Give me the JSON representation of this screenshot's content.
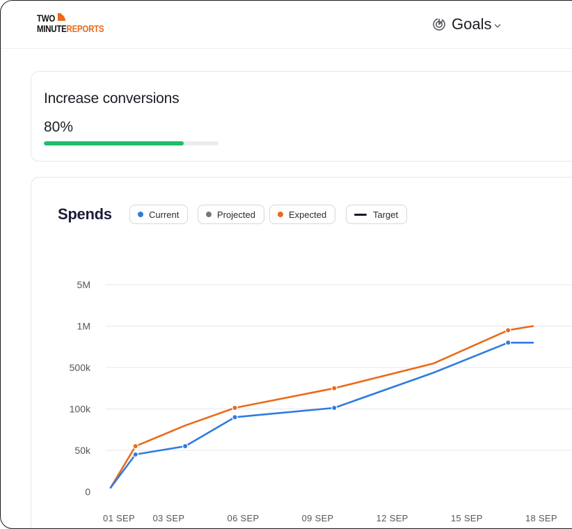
{
  "header": {
    "logo": {
      "line1": "TWO",
      "line2_a": "MINUTE",
      "line2_b": "REPORTS"
    },
    "nav_label": "Goals",
    "nav_icon": "goal-target-icon"
  },
  "goal": {
    "title": "Increase conversions",
    "percent_label": "80%",
    "progress": 0.8,
    "progress_color": "#1fbd6c"
  },
  "legend": {
    "current": {
      "label": "Current",
      "color": "#2f7be0"
    },
    "projected": {
      "label": "Projected",
      "color": "#777777"
    },
    "expected": {
      "label": "Expected",
      "color": "#ea6a1b"
    },
    "target": {
      "label": "Target",
      "color": "#17172a"
    }
  },
  "chart_data": {
    "type": "line",
    "title": "Spends",
    "y_ticks": [
      "0",
      "50k",
      "100k",
      "500k",
      "1M",
      "5M"
    ],
    "x_ticks": [
      "01 SEP",
      "03 SEP",
      "06 SEP",
      "09 SEP",
      "12 SEP",
      "15 SEP",
      "18 SEP"
    ],
    "grid": true,
    "series": [
      {
        "name": "Current",
        "color": "#2f7be0",
        "points": [
          {
            "x": "01 SEP",
            "y": 5000
          },
          {
            "x": "02 SEP",
            "y": 45000
          },
          {
            "x": "04 SEP",
            "y": 55000
          },
          {
            "x": "06 SEP",
            "y": 90000
          },
          {
            "x": "10 SEP",
            "y": 110000
          },
          {
            "x": "14 SEP",
            "y": 450000
          },
          {
            "x": "17 SEP",
            "y": 800000
          },
          {
            "x": "18 SEP",
            "y": 800000
          }
        ],
        "marked": [
          "02 SEP",
          "04 SEP",
          "06 SEP",
          "10 SEP",
          "17 SEP"
        ]
      },
      {
        "name": "Expected",
        "color": "#ea6a1b",
        "points": [
          {
            "x": "01 SEP",
            "y": 5000
          },
          {
            "x": "02 SEP",
            "y": 55000
          },
          {
            "x": "04 SEP",
            "y": 80000
          },
          {
            "x": "06 SEP",
            "y": 110000
          },
          {
            "x": "10 SEP",
            "y": 300000
          },
          {
            "x": "14 SEP",
            "y": 550000
          },
          {
            "x": "17 SEP",
            "y": 950000
          },
          {
            "x": "18 SEP",
            "y": 1000000
          }
        ],
        "marked": [
          "02 SEP",
          "06 SEP",
          "10 SEP",
          "17 SEP"
        ]
      }
    ]
  }
}
